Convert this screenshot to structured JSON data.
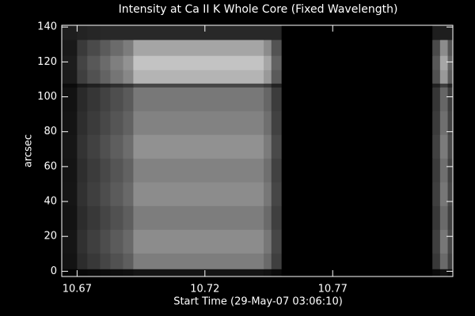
{
  "chart_data": {
    "type": "heatmap",
    "title": "Intensity at Ca II K Whole Core (Fixed Wavelength)",
    "xlabel": "Start Time (29-May-07 03:06:10)",
    "ylabel": "arcsec",
    "xlim": [
      10.664,
      10.817
    ],
    "ylim": [
      -3,
      141
    ],
    "xticks": [
      10.67,
      10.72,
      10.77
    ],
    "yticks": [
      0,
      20,
      40,
      60,
      80,
      100,
      120,
      140
    ],
    "x_edges": [
      10.664,
      10.67,
      10.674,
      10.679,
      10.683,
      10.688,
      10.692,
      10.743,
      10.746,
      10.75,
      10.809,
      10.812,
      10.815,
      10.817
    ],
    "y_edges": [
      -3,
      1.4,
      10.4,
      24,
      37.6,
      51.2,
      64.8,
      78.4,
      92,
      105.6,
      107.8,
      115.5,
      123.7,
      132.8,
      141
    ],
    "z": [
      [
        3,
        7,
        9,
        11,
        13,
        15,
        20,
        17,
        10,
        0,
        9,
        17,
        10
      ],
      [
        19,
        44,
        56,
        69,
        81,
        94,
        125,
        106,
        63,
        0,
        56,
        106,
        63
      ],
      [
        21,
        49,
        63,
        77,
        91,
        105,
        140,
        119,
        70,
        0,
        63,
        119,
        70
      ],
      [
        19,
        44,
        56,
        69,
        81,
        94,
        125,
        106,
        63,
        0,
        56,
        106,
        63
      ],
      [
        21,
        49,
        63,
        77,
        91,
        105,
        140,
        119,
        70,
        0,
        63,
        119,
        70
      ],
      [
        20,
        46,
        59,
        72,
        85,
        98,
        130,
        111,
        65,
        0,
        59,
        111,
        65
      ],
      [
        22,
        51,
        65,
        80,
        94,
        109,
        145,
        123,
        73,
        0,
        65,
        123,
        73
      ],
      [
        20,
        46,
        59,
        72,
        85,
        98,
        130,
        111,
        65,
        0,
        59,
        111,
        65
      ],
      [
        18,
        42,
        54,
        66,
        78,
        90,
        120,
        102,
        60,
        0,
        54,
        102,
        60
      ],
      [
        11,
        25,
        32,
        39,
        46,
        53,
        70,
        60,
        35,
        0,
        32,
        60,
        35
      ],
      [
        27,
        63,
        81,
        99,
        117,
        135,
        180,
        153,
        90,
        0,
        81,
        153,
        90
      ],
      [
        29,
        68,
        88,
        107,
        127,
        146,
        195,
        166,
        98,
        0,
        88,
        166,
        98
      ],
      [
        25,
        58,
        74,
        91,
        107,
        124,
        165,
        140,
        83,
        0,
        74,
        140,
        83
      ],
      [
        30,
        35,
        38,
        40,
        40,
        40,
        40,
        40,
        40,
        0,
        30,
        30,
        30
      ]
    ],
    "colormap": "gray",
    "background": "#000000",
    "axis_color": "#ffffff"
  }
}
